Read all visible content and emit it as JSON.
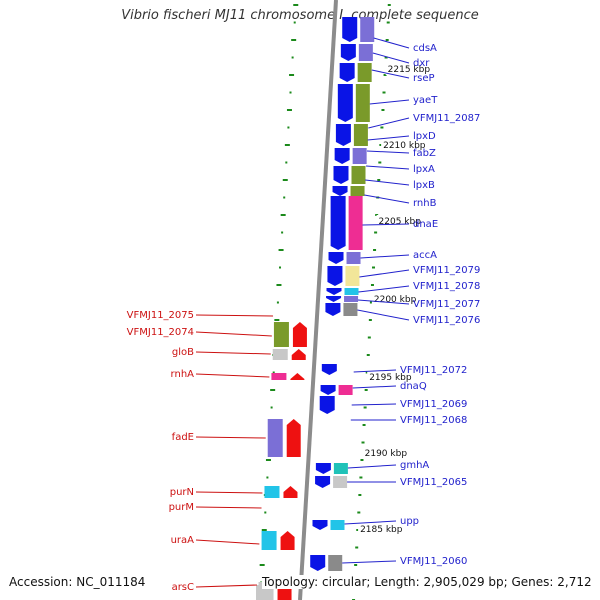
{
  "title": "Vibrio fischeri MJ11 chromosome I, complete sequence",
  "accession": "Accession: NC_011184",
  "summary": "Topology: circular; Length: 2,905,029 bp; Genes: 2,712",
  "colors": {
    "blue": "#0a14e6",
    "purple": "#7b6fd6",
    "olive": "#7a9a2a",
    "magenta": "#ee2d93",
    "cream": "#f2e699",
    "cyan": "#22c4e8",
    "teal": "#20c2b8",
    "gray": "#8a8a8a",
    "lightgray": "#c8c8c8",
    "red": "#ee1111",
    "backbone": "#8c8c8c",
    "tick": "#1b8a1b",
    "right_label": "#2222cc",
    "left_label": "#cc1111"
  },
  "scale_labels": [
    "2215 kbp",
    "2210 kbp",
    "2205 kbp",
    "2200 kbp",
    "2195 kbp",
    "2190 kbp",
    "2185 kbp"
  ],
  "right_labels": [
    "cdsA",
    "dxr",
    "rseP",
    "yaeT",
    "VFMJ11_2087",
    "lpxD",
    "fabZ",
    "lpxA",
    "lpxB",
    "rnhB",
    "dnaE",
    "accA",
    "VFMJ11_2079",
    "VFMJ11_2078",
    "VFMJ11_2077",
    "VFMJ11_2076",
    "VFMJ11_2072",
    "dnaQ",
    "VFMJ11_2069",
    "VFMJ11_2068",
    "gmhA",
    "VFMJ11_2065",
    "upp",
    "VFMJ11_2060"
  ],
  "left_labels": [
    "VFMJ11_2075",
    "VFMJ11_2074",
    "gloB",
    "rnhA",
    "fadE",
    "purN",
    "purM",
    "uraA",
    "arsC"
  ]
}
